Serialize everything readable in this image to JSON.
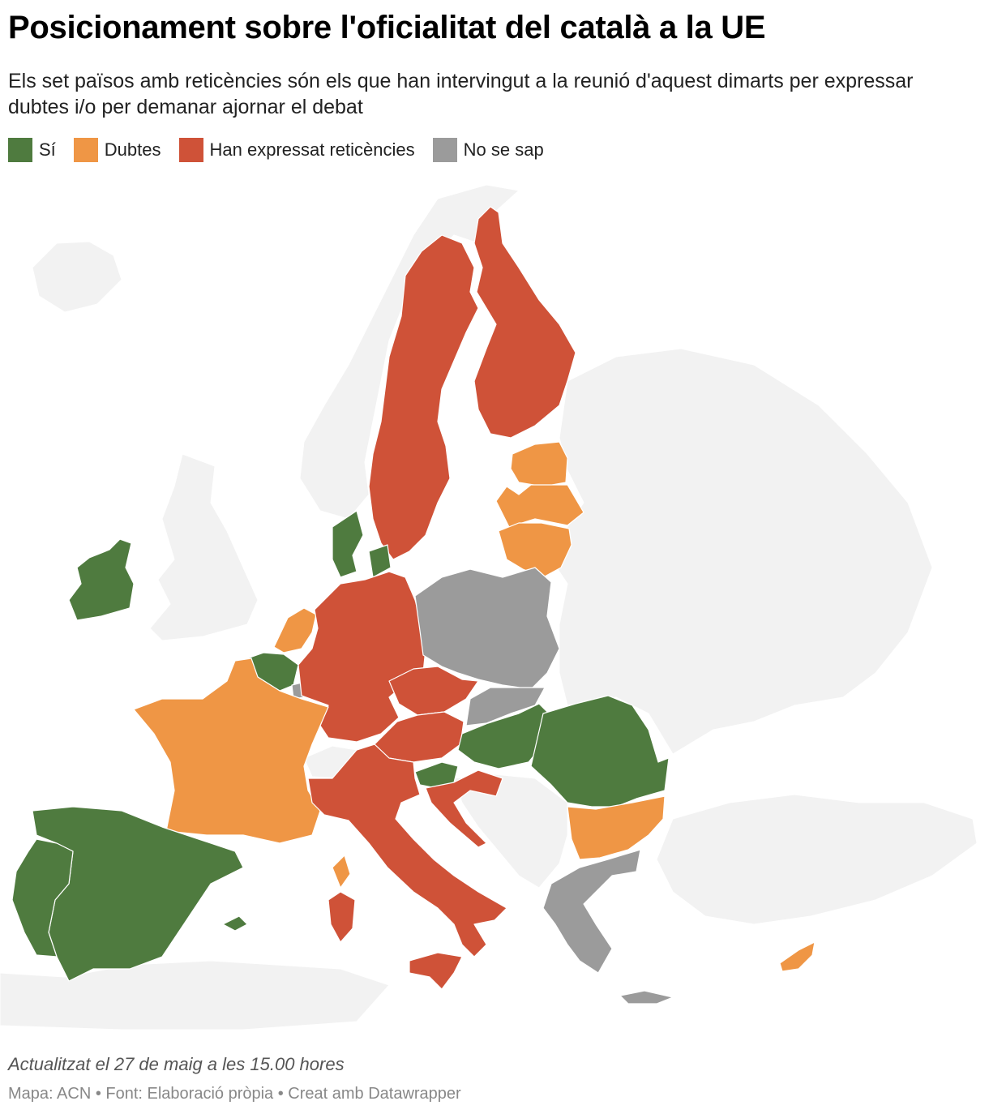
{
  "title": "Posicionament sobre l'oficialitat del català a la UE",
  "subtitle": "Els set països amb reticències són els que han intervingut a la reunió d'aquest dimarts per expressar dubtes i/o per demanar ajornar el debat",
  "legend": [
    {
      "label": "Sí",
      "color": "#4f7b3f"
    },
    {
      "label": "Dubtes",
      "color": "#ef9645"
    },
    {
      "label": "Han expressat reticències",
      "color": "#cf5238"
    },
    {
      "label": "No se sap",
      "color": "#9b9b9b"
    }
  ],
  "map": {
    "background_land_color": "#f2f2f2",
    "countries": [
      {
        "name": "Ireland",
        "category": "Sí"
      },
      {
        "name": "Spain",
        "category": "Sí"
      },
      {
        "name": "Portugal",
        "category": "Sí"
      },
      {
        "name": "Belgium",
        "category": "Sí"
      },
      {
        "name": "Denmark",
        "category": "Sí"
      },
      {
        "name": "Slovenia",
        "category": "Sí"
      },
      {
        "name": "Hungary",
        "category": "Sí"
      },
      {
        "name": "Romania",
        "category": "Sí"
      },
      {
        "name": "France",
        "category": "Dubtes"
      },
      {
        "name": "Netherlands",
        "category": "Dubtes"
      },
      {
        "name": "Estonia",
        "category": "Dubtes"
      },
      {
        "name": "Latvia",
        "category": "Dubtes"
      },
      {
        "name": "Lithuania",
        "category": "Dubtes"
      },
      {
        "name": "Bulgaria",
        "category": "Dubtes"
      },
      {
        "name": "Cyprus",
        "category": "Dubtes"
      },
      {
        "name": "Sweden",
        "category": "Han expressat reticències"
      },
      {
        "name": "Finland",
        "category": "Han expressat reticències"
      },
      {
        "name": "Germany",
        "category": "Han expressat reticències"
      },
      {
        "name": "Czechia",
        "category": "Han expressat reticències"
      },
      {
        "name": "Austria",
        "category": "Han expressat reticències"
      },
      {
        "name": "Italy",
        "category": "Han expressat reticències"
      },
      {
        "name": "Croatia",
        "category": "Han expressat reticències"
      },
      {
        "name": "Poland",
        "category": "No se sap"
      },
      {
        "name": "Slovakia",
        "category": "No se sap"
      },
      {
        "name": "Greece",
        "category": "No se sap"
      },
      {
        "name": "Luxembourg",
        "category": "No se sap"
      }
    ]
  },
  "footer": {
    "updated": "Actualitzat el 27 de maig a les 15.00 hores",
    "source": "Mapa: ACN • Font: Elaboració pròpia • Creat amb Datawrapper"
  }
}
